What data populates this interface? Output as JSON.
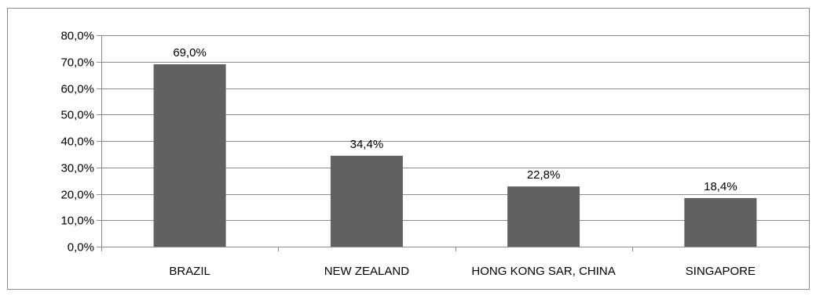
{
  "chart_data": {
    "type": "bar",
    "title": "",
    "xlabel": "",
    "ylabel": "",
    "categories": [
      "BRAZIL",
      "NEW ZEALAND",
      "HONG KONG SAR, CHINA",
      "SINGAPORE"
    ],
    "values": [
      69.0,
      34.4,
      22.8,
      18.4
    ],
    "data_labels": [
      "69,0%",
      "34,4%",
      "22,8%",
      "18,4%"
    ],
    "ylim": [
      0,
      80
    ],
    "yticks": [
      0,
      10,
      20,
      30,
      40,
      50,
      60,
      70,
      80
    ],
    "ytick_labels": [
      "0,0%",
      "10,0%",
      "20,0%",
      "30,0%",
      "40,0%",
      "50,0%",
      "60,0%",
      "70,0%",
      "80,0%"
    ],
    "grid": true,
    "legend": "none",
    "colors": {
      "bar": "#616161",
      "grid": "#8c8c8c",
      "axis": "#8c8c8c",
      "frame": "#8c8c8c"
    }
  }
}
